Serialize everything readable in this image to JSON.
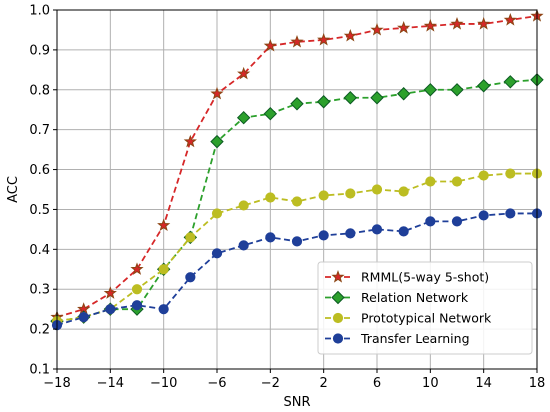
{
  "chart_data": {
    "type": "line",
    "title": "",
    "xlabel": "SNR",
    "ylabel": "ACC",
    "xlim": [
      -18,
      18
    ],
    "ylim": [
      0.1,
      1.0
    ],
    "xticks": [
      -18,
      -14,
      -10,
      -6,
      -2,
      2,
      6,
      10,
      14,
      18
    ],
    "xtick_labels": [
      "−18",
      "−14",
      "−10",
      "−6",
      "−2",
      "2",
      "6",
      "10",
      "14",
      "18"
    ],
    "yticks": [
      0.1,
      0.2,
      0.3,
      0.4,
      0.5,
      0.6,
      0.7,
      0.8,
      0.9,
      1.0
    ],
    "ytick_labels": [
      "0.1",
      "0.2",
      "0.3",
      "0.4",
      "0.5",
      "0.6",
      "0.7",
      "0.8",
      "0.9",
      "1.0"
    ],
    "grid": true,
    "legend_position": "bottom-right",
    "x": [
      -18,
      -16,
      -14,
      -12,
      -10,
      -8,
      -6,
      -4,
      -2,
      0,
      2,
      4,
      6,
      8,
      10,
      12,
      14,
      16,
      18
    ],
    "series": [
      {
        "name": "RMML(5-way 5-shot)",
        "color": "#d62728",
        "marker": "star",
        "values": [
          0.23,
          0.25,
          0.29,
          0.35,
          0.46,
          0.67,
          0.79,
          0.84,
          0.91,
          0.92,
          0.925,
          0.935,
          0.95,
          0.955,
          0.96,
          0.965,
          0.965,
          0.975,
          0.985
        ]
      },
      {
        "name": "Relation Network",
        "color": "#2ca02c",
        "marker": "diamond",
        "values": [
          0.22,
          0.23,
          0.25,
          0.25,
          0.35,
          0.43,
          0.67,
          0.73,
          0.74,
          0.765,
          0.77,
          0.78,
          0.78,
          0.79,
          0.8,
          0.8,
          0.81,
          0.82,
          0.825
        ]
      },
      {
        "name": "Prototypical Network",
        "color": "#bcbd22",
        "marker": "circle",
        "values": [
          0.22,
          0.23,
          0.25,
          0.3,
          0.35,
          0.43,
          0.49,
          0.51,
          0.53,
          0.52,
          0.535,
          0.54,
          0.55,
          0.545,
          0.57,
          0.57,
          0.585,
          0.59,
          0.59
        ]
      },
      {
        "name": "Transfer Learning",
        "color": "#1f3f99",
        "marker": "circle",
        "values": [
          0.21,
          0.23,
          0.25,
          0.26,
          0.25,
          0.33,
          0.39,
          0.41,
          0.43,
          0.42,
          0.435,
          0.44,
          0.45,
          0.445,
          0.47,
          0.47,
          0.485,
          0.49,
          0.49
        ]
      }
    ]
  }
}
